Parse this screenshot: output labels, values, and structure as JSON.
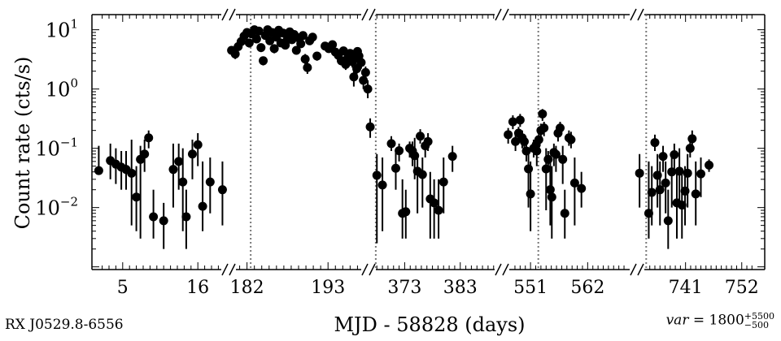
{
  "caption": {
    "source": "RX J0529.8-6556",
    "var_label": "var",
    "var_value": "1800",
    "var_plus": "+5500",
    "var_minus": "−500"
  },
  "chart_data": {
    "type": "scatter",
    "title": "",
    "xlabel": "MJD - 58828 (days)",
    "ylabel": "Count rate (cts/s)",
    "yscale": "log",
    "ylim": [
      0.0009,
      18
    ],
    "yticks": [
      {
        "value": 0.01,
        "base": "10",
        "exp": "−2"
      },
      {
        "value": 0.1,
        "base": "10",
        "exp": "−1"
      },
      {
        "value": 1,
        "base": "10",
        "exp": "0"
      },
      {
        "value": 10,
        "base": "10",
        "exp": "1"
      }
    ],
    "panels": [
      {
        "xlim": [
          0.5,
          20.5
        ],
        "ticks": [
          5,
          16
        ],
        "vline": null,
        "points": [
          [
            1.5,
            0.042,
            0.04,
            0.11
          ],
          [
            3.2,
            0.062,
            0.03,
            0.12
          ],
          [
            4.0,
            0.054,
            0.025,
            0.1
          ],
          [
            4.8,
            0.048,
            0.02,
            0.09
          ],
          [
            5.5,
            0.044,
            0.02,
            0.09
          ],
          [
            6.3,
            0.038,
            0.005,
            0.14
          ],
          [
            7.0,
            0.015,
            0.004,
            0.05
          ],
          [
            7.6,
            0.065,
            0.003,
            0.11
          ],
          [
            8.2,
            0.08,
            0.04,
            0.14
          ],
          [
            8.8,
            0.15,
            0.1,
            0.2
          ],
          [
            9.5,
            0.007,
            0.003,
            0.02
          ],
          [
            11.0,
            0.006,
            0.002,
            0.012
          ],
          [
            12.4,
            0.044,
            0.01,
            0.12
          ],
          [
            13.2,
            0.06,
            0.02,
            0.12
          ],
          [
            13.8,
            0.027,
            0.004,
            0.1
          ],
          [
            14.3,
            0.007,
            0.002,
            0.02
          ],
          [
            15.2,
            0.08,
            0.03,
            0.14
          ],
          [
            16.0,
            0.115,
            0.05,
            0.18
          ],
          [
            16.7,
            0.0105,
            0.004,
            0.06
          ],
          [
            17.8,
            0.027,
            0.008,
            0.07
          ],
          [
            19.6,
            0.02,
            0.005,
            0.06
          ]
        ]
      },
      {
        "xlim": [
          179.5,
          198.5
        ],
        "ticks": [
          182,
          193
        ],
        "vline": 182.5,
        "points": [
          [
            179.9,
            4.5,
            3.8,
            5.3
          ],
          [
            180.4,
            3.9,
            3.2,
            4.7
          ],
          [
            180.8,
            5.2,
            4.4,
            6.0
          ],
          [
            181.2,
            6.3,
            5.4,
            7.2
          ],
          [
            181.6,
            7.8,
            6.8,
            8.8
          ],
          [
            182.0,
            9.0,
            8.0,
            10.0
          ],
          [
            182.3,
            6.0,
            5.0,
            7.0
          ],
          [
            182.6,
            8.5,
            7.5,
            9.5
          ],
          [
            183.0,
            10.0,
            9.0,
            11.0
          ],
          [
            183.3,
            7.0,
            6.0,
            8.0
          ],
          [
            183.6,
            9.5,
            8.5,
            10.5
          ],
          [
            183.9,
            5.0,
            4.2,
            5.8
          ],
          [
            184.2,
            3.0,
            2.5,
            3.5
          ],
          [
            184.5,
            8.0,
            7.0,
            9.0
          ],
          [
            184.8,
            10.0,
            9.0,
            11.0
          ],
          [
            185.1,
            6.5,
            5.6,
            7.4
          ],
          [
            185.4,
            9.0,
            8.0,
            10.0
          ],
          [
            185.7,
            4.8,
            4.0,
            5.6
          ],
          [
            186.0,
            7.5,
            6.5,
            8.5
          ],
          [
            186.3,
            9.8,
            8.8,
            10.8
          ],
          [
            186.6,
            6.0,
            5.2,
            6.8
          ],
          [
            186.9,
            8.8,
            7.8,
            9.8
          ],
          [
            187.2,
            5.5,
            4.7,
            6.3
          ],
          [
            187.5,
            7.0,
            6.1,
            7.9
          ],
          [
            187.8,
            9.2,
            8.2,
            10.2
          ],
          [
            188.1,
            6.8,
            5.9,
            7.7
          ],
          [
            188.4,
            8.3,
            7.3,
            9.3
          ],
          [
            188.7,
            4.5,
            3.8,
            5.2
          ],
          [
            189.0,
            7.3,
            6.4,
            8.2
          ],
          [
            189.3,
            5.8,
            5.0,
            6.6
          ],
          [
            189.6,
            8.0,
            7.0,
            9.0
          ],
          [
            189.9,
            3.2,
            2.5,
            3.9
          ],
          [
            190.2,
            2.3,
            1.8,
            2.8
          ],
          [
            190.5,
            6.5,
            5.6,
            7.4
          ],
          [
            190.9,
            7.5,
            6.6,
            8.4
          ],
          [
            191.5,
            3.6,
            3.0,
            4.2
          ],
          [
            192.6,
            5.3,
            4.6,
            6.0
          ],
          [
            193.1,
            4.8,
            4.1,
            5.5
          ],
          [
            193.6,
            5.6,
            4.9,
            6.3
          ],
          [
            194.0,
            4.2,
            3.5,
            4.9
          ],
          [
            194.4,
            3.7,
            3.1,
            4.3
          ],
          [
            194.8,
            3.0,
            2.5,
            3.5
          ],
          [
            195.1,
            4.4,
            3.7,
            5.1
          ],
          [
            195.4,
            2.6,
            2.1,
            3.1
          ],
          [
            195.7,
            3.4,
            2.8,
            4.0
          ],
          [
            196.0,
            4.0,
            3.3,
            4.7
          ],
          [
            196.3,
            2.9,
            2.3,
            3.5
          ],
          [
            196.6,
            3.3,
            2.7,
            3.9
          ],
          [
            196.9,
            2.2,
            1.7,
            2.7
          ],
          [
            197.2,
            3.6,
            3.0,
            4.2
          ],
          [
            197.5,
            2.8,
            2.2,
            3.4
          ],
          [
            197.8,
            1.4,
            1.0,
            1.8
          ],
          [
            198.1,
            1.9,
            1.4,
            2.4
          ],
          [
            198.4,
            1.0,
            0.7,
            1.4
          ],
          [
            197.0,
            4.3,
            3.6,
            5.0
          ],
          [
            196.5,
            1.6,
            1.1,
            2.1
          ]
        ]
      },
      {
        "xlim": [
          366.5,
          390.5
        ],
        "ticks": [
          373,
          383
        ],
        "vline": 367.8,
        "points": [
          [
            366.8,
            0.23,
            0.15,
            0.32
          ],
          [
            368.0,
            0.035,
            0.0025,
            0.08
          ],
          [
            369.0,
            0.024,
            0.004,
            0.07
          ],
          [
            370.6,
            0.12,
            0.09,
            0.16
          ],
          [
            371.4,
            0.046,
            0.02,
            0.09
          ],
          [
            372.0,
            0.091,
            0.06,
            0.12
          ],
          [
            372.6,
            0.008,
            0.003,
            0.03
          ],
          [
            373.2,
            0.0085,
            0.003,
            0.02
          ],
          [
            373.9,
            0.1,
            0.07,
            0.13
          ],
          [
            374.4,
            0.09,
            0.05,
            0.13
          ],
          [
            374.8,
            0.075,
            0.03,
            0.15
          ],
          [
            375.3,
            0.041,
            0.008,
            0.08
          ],
          [
            375.8,
            0.16,
            0.12,
            0.21
          ],
          [
            376.2,
            0.036,
            0.01,
            0.07
          ],
          [
            376.7,
            0.11,
            0.07,
            0.15
          ],
          [
            377.2,
            0.13,
            0.09,
            0.18
          ],
          [
            377.6,
            0.014,
            0.003,
            0.04
          ],
          [
            378.3,
            0.012,
            0.003,
            0.03
          ],
          [
            379.1,
            0.009,
            0.003,
            0.03
          ],
          [
            380.0,
            0.027,
            0.008,
            0.07
          ],
          [
            381.6,
            0.073,
            0.04,
            0.11
          ]
        ]
      },
      {
        "xlim": [
          545.5,
          571.5
        ],
        "ticks": [
          551,
          562
        ],
        "vline": 552.5,
        "points": [
          [
            546.7,
            0.17,
            0.12,
            0.22
          ],
          [
            547.6,
            0.28,
            0.21,
            0.36
          ],
          [
            548.1,
            0.13,
            0.09,
            0.17
          ],
          [
            548.7,
            0.18,
            0.13,
            0.23
          ],
          [
            549.0,
            0.3,
            0.23,
            0.38
          ],
          [
            549.4,
            0.15,
            0.1,
            0.2
          ],
          [
            549.8,
            0.13,
            0.09,
            0.17
          ],
          [
            550.2,
            0.09,
            0.06,
            0.13
          ],
          [
            550.6,
            0.045,
            0.01,
            0.1
          ],
          [
            551.0,
            0.017,
            0.004,
            0.06
          ],
          [
            551.6,
            0.1,
            0.07,
            0.14
          ],
          [
            552.1,
            0.115,
            0.08,
            0.15
          ],
          [
            552.6,
            0.14,
            0.1,
            0.18
          ],
          [
            553.0,
            0.2,
            0.14,
            0.26
          ],
          [
            553.3,
            0.38,
            0.29,
            0.46
          ],
          [
            553.6,
            0.22,
            0.16,
            0.28
          ],
          [
            554.0,
            0.045,
            0.009,
            0.1
          ],
          [
            554.4,
            0.065,
            0.04,
            0.09
          ],
          [
            554.8,
            0.02,
            0.005,
            0.06
          ],
          [
            555.1,
            0.015,
            0.003,
            0.05
          ],
          [
            555.5,
            0.085,
            0.05,
            0.12
          ],
          [
            555.9,
            0.079,
            0.04,
            0.11
          ],
          [
            556.3,
            0.18,
            0.13,
            0.23
          ],
          [
            556.7,
            0.22,
            0.16,
            0.28
          ],
          [
            557.2,
            0.065,
            0.025,
            0.11
          ],
          [
            557.6,
            0.008,
            0.003,
            0.02
          ],
          [
            558.4,
            0.15,
            0.11,
            0.2
          ],
          [
            558.8,
            0.14,
            0.1,
            0.19
          ],
          [
            559.5,
            0.026,
            0.005,
            0.07
          ],
          [
            560.8,
            0.021,
            0.01,
            0.04
          ],
          [
            552.2,
            0.09,
            0.05,
            0.14
          ]
        ]
      },
      {
        "xlim": [
          731.5,
          756.5
        ],
        "ticks": [
          741,
          752
        ],
        "vline": 733.3,
        "points": [
          [
            732.0,
            0.038,
            0.01,
            0.08
          ],
          [
            733.8,
            0.008,
            0.003,
            0.06
          ],
          [
            734.4,
            0.018,
            0.005,
            0.05
          ],
          [
            735.0,
            0.125,
            0.09,
            0.17
          ],
          [
            735.5,
            0.035,
            0.01,
            0.08
          ],
          [
            736.0,
            0.02,
            0.005,
            0.06
          ],
          [
            736.6,
            0.073,
            0.04,
            0.11
          ],
          [
            737.1,
            0.026,
            0.008,
            0.06
          ],
          [
            737.6,
            0.006,
            0.002,
            0.02
          ],
          [
            738.3,
            0.04,
            0.01,
            0.08
          ],
          [
            738.8,
            0.078,
            0.04,
            0.12
          ],
          [
            739.3,
            0.012,
            0.003,
            0.04
          ],
          [
            739.8,
            0.041,
            0.01,
            0.1
          ],
          [
            740.3,
            0.011,
            0.003,
            0.04
          ],
          [
            740.9,
            0.019,
            0.005,
            0.05
          ],
          [
            741.4,
            0.038,
            0.01,
            0.08
          ],
          [
            741.9,
            0.1,
            0.07,
            0.13
          ],
          [
            742.3,
            0.145,
            0.1,
            0.2
          ],
          [
            743.0,
            0.017,
            0.005,
            0.06
          ],
          [
            744.0,
            0.037,
            0.015,
            0.07
          ],
          [
            745.6,
            0.052,
            0.04,
            0.065
          ]
        ]
      }
    ]
  }
}
